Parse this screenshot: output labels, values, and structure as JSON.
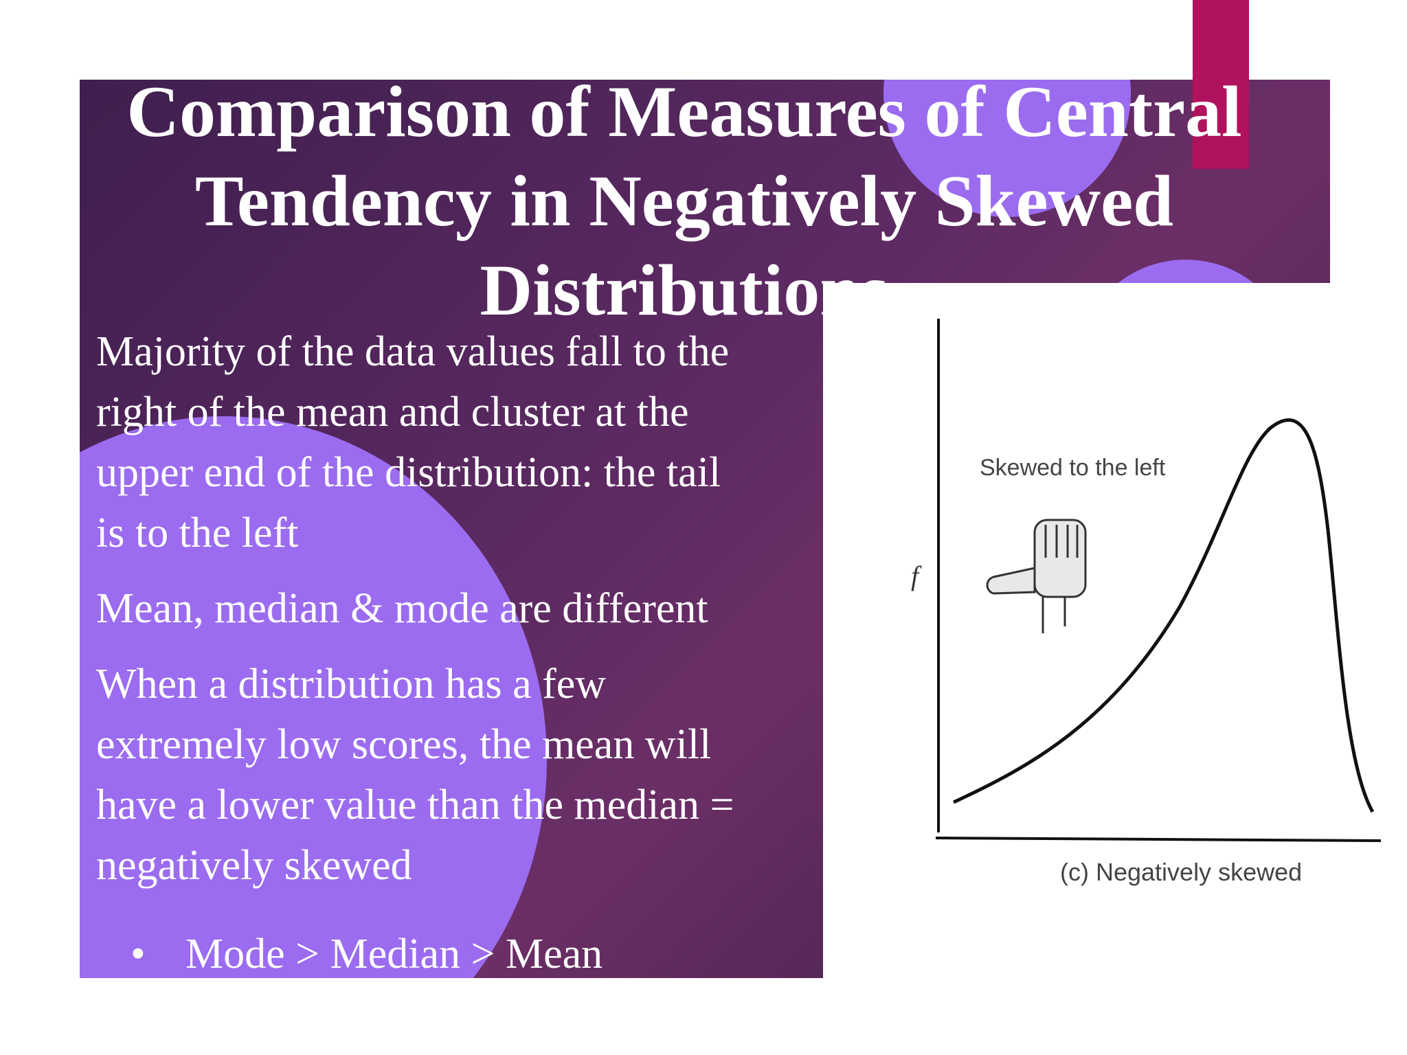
{
  "slide": {
    "title": "Comparison of Measures of Central Tendency in Negatively Skewed Distributions",
    "paragraphs": [
      "Majority of the data values fall to the right of the mean and cluster at the upper end of the distribution: the tail is to the left",
      "Mean, median & mode are different",
      "When a distribution has a few extremely low scores, the mean will have a lower value than the median = negatively skewed"
    ],
    "bullet": "Mode > Median > Mean"
  },
  "figure": {
    "annotation": "Skewed to the left",
    "y_axis_label": "f",
    "caption": "(c) Negatively skewed",
    "icon": "thumb-pointing-left-hand-icon"
  },
  "colors": {
    "panel_dark": "#3f1f4f",
    "panel_mid": "#6b2f66",
    "circle": "#9b6cf0",
    "accent": "#b0125e"
  }
}
